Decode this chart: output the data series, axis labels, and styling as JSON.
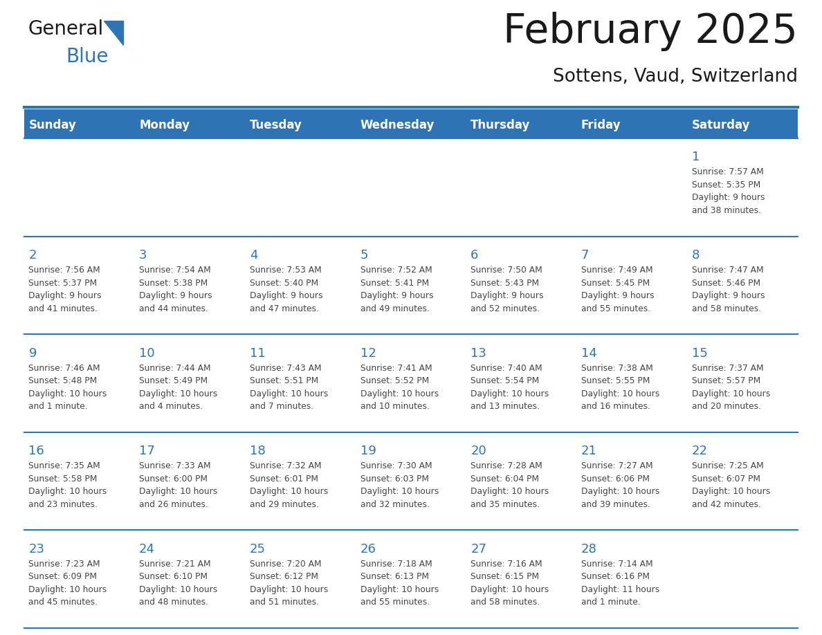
{
  "title": "February 2025",
  "subtitle": "Sottens, Vaud, Switzerland",
  "header_bg": "#2E74B5",
  "header_text": "#FFFFFF",
  "cell_bg": "#FFFFFF",
  "cell_bg_alt": "#EFEFEF",
  "day_number_color": "#2E74B5",
  "text_color": "#444444",
  "border_color": "#2E74B5",
  "days_of_week": [
    "Sunday",
    "Monday",
    "Tuesday",
    "Wednesday",
    "Thursday",
    "Friday",
    "Saturday"
  ],
  "weeks": [
    [
      {
        "day": null,
        "info": null
      },
      {
        "day": null,
        "info": null
      },
      {
        "day": null,
        "info": null
      },
      {
        "day": null,
        "info": null
      },
      {
        "day": null,
        "info": null
      },
      {
        "day": null,
        "info": null
      },
      {
        "day": 1,
        "info": "Sunrise: 7:57 AM\nSunset: 5:35 PM\nDaylight: 9 hours\nand 38 minutes."
      }
    ],
    [
      {
        "day": 2,
        "info": "Sunrise: 7:56 AM\nSunset: 5:37 PM\nDaylight: 9 hours\nand 41 minutes."
      },
      {
        "day": 3,
        "info": "Sunrise: 7:54 AM\nSunset: 5:38 PM\nDaylight: 9 hours\nand 44 minutes."
      },
      {
        "day": 4,
        "info": "Sunrise: 7:53 AM\nSunset: 5:40 PM\nDaylight: 9 hours\nand 47 minutes."
      },
      {
        "day": 5,
        "info": "Sunrise: 7:52 AM\nSunset: 5:41 PM\nDaylight: 9 hours\nand 49 minutes."
      },
      {
        "day": 6,
        "info": "Sunrise: 7:50 AM\nSunset: 5:43 PM\nDaylight: 9 hours\nand 52 minutes."
      },
      {
        "day": 7,
        "info": "Sunrise: 7:49 AM\nSunset: 5:45 PM\nDaylight: 9 hours\nand 55 minutes."
      },
      {
        "day": 8,
        "info": "Sunrise: 7:47 AM\nSunset: 5:46 PM\nDaylight: 9 hours\nand 58 minutes."
      }
    ],
    [
      {
        "day": 9,
        "info": "Sunrise: 7:46 AM\nSunset: 5:48 PM\nDaylight: 10 hours\nand 1 minute."
      },
      {
        "day": 10,
        "info": "Sunrise: 7:44 AM\nSunset: 5:49 PM\nDaylight: 10 hours\nand 4 minutes."
      },
      {
        "day": 11,
        "info": "Sunrise: 7:43 AM\nSunset: 5:51 PM\nDaylight: 10 hours\nand 7 minutes."
      },
      {
        "day": 12,
        "info": "Sunrise: 7:41 AM\nSunset: 5:52 PM\nDaylight: 10 hours\nand 10 minutes."
      },
      {
        "day": 13,
        "info": "Sunrise: 7:40 AM\nSunset: 5:54 PM\nDaylight: 10 hours\nand 13 minutes."
      },
      {
        "day": 14,
        "info": "Sunrise: 7:38 AM\nSunset: 5:55 PM\nDaylight: 10 hours\nand 16 minutes."
      },
      {
        "day": 15,
        "info": "Sunrise: 7:37 AM\nSunset: 5:57 PM\nDaylight: 10 hours\nand 20 minutes."
      }
    ],
    [
      {
        "day": 16,
        "info": "Sunrise: 7:35 AM\nSunset: 5:58 PM\nDaylight: 10 hours\nand 23 minutes."
      },
      {
        "day": 17,
        "info": "Sunrise: 7:33 AM\nSunset: 6:00 PM\nDaylight: 10 hours\nand 26 minutes."
      },
      {
        "day": 18,
        "info": "Sunrise: 7:32 AM\nSunset: 6:01 PM\nDaylight: 10 hours\nand 29 minutes."
      },
      {
        "day": 19,
        "info": "Sunrise: 7:30 AM\nSunset: 6:03 PM\nDaylight: 10 hours\nand 32 minutes."
      },
      {
        "day": 20,
        "info": "Sunrise: 7:28 AM\nSunset: 6:04 PM\nDaylight: 10 hours\nand 35 minutes."
      },
      {
        "day": 21,
        "info": "Sunrise: 7:27 AM\nSunset: 6:06 PM\nDaylight: 10 hours\nand 39 minutes."
      },
      {
        "day": 22,
        "info": "Sunrise: 7:25 AM\nSunset: 6:07 PM\nDaylight: 10 hours\nand 42 minutes."
      }
    ],
    [
      {
        "day": 23,
        "info": "Sunrise: 7:23 AM\nSunset: 6:09 PM\nDaylight: 10 hours\nand 45 minutes."
      },
      {
        "day": 24,
        "info": "Sunrise: 7:21 AM\nSunset: 6:10 PM\nDaylight: 10 hours\nand 48 minutes."
      },
      {
        "day": 25,
        "info": "Sunrise: 7:20 AM\nSunset: 6:12 PM\nDaylight: 10 hours\nand 51 minutes."
      },
      {
        "day": 26,
        "info": "Sunrise: 7:18 AM\nSunset: 6:13 PM\nDaylight: 10 hours\nand 55 minutes."
      },
      {
        "day": 27,
        "info": "Sunrise: 7:16 AM\nSunset: 6:15 PM\nDaylight: 10 hours\nand 58 minutes."
      },
      {
        "day": 28,
        "info": "Sunrise: 7:14 AM\nSunset: 6:16 PM\nDaylight: 11 hours\nand 1 minute."
      },
      {
        "day": null,
        "info": null
      }
    ]
  ],
  "fig_width": 11.88,
  "fig_height": 9.18,
  "dpi": 100
}
